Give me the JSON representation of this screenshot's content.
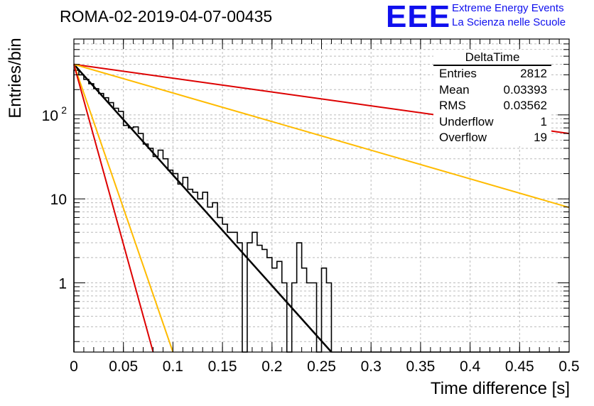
{
  "header": {
    "title": "ROMA-02-2019-04-07-00435",
    "logo_text": "EEE",
    "logo_line1": "Extreme Energy Events",
    "logo_line2": "La Scienza nelle Scuole"
  },
  "stats_box": {
    "name": "DeltaTime",
    "rows": [
      {
        "label": "Entries",
        "value": "2812"
      },
      {
        "label": "Mean",
        "value": "0.03393"
      },
      {
        "label": "RMS",
        "value": "0.03562"
      },
      {
        "label": "Underflow",
        "value": "1"
      },
      {
        "label": "Overflow",
        "value": "19"
      }
    ]
  },
  "chart_data": {
    "type": "bar",
    "xlabel": "Time difference [s]",
    "ylabel": "Entries/bin",
    "xlim": [
      0,
      0.5
    ],
    "ylim": [
      0.15,
      800
    ],
    "log_y": true,
    "grid": true,
    "x_ticks": [
      "0",
      "0.05",
      "0.1",
      "0.15",
      "0.2",
      "0.25",
      "0.3",
      "0.35",
      "0.4",
      "0.45",
      "0.5"
    ],
    "y_ticks": [
      {
        "value": 1,
        "label": "1"
      },
      {
        "value": 10,
        "label": "10"
      },
      {
        "value": 100,
        "label": "10",
        "exp": "2"
      }
    ],
    "histogram": {
      "bin_width": 0.005,
      "counts": [
        340,
        300,
        265,
        235,
        205,
        180,
        160,
        140,
        120,
        110,
        75,
        70,
        72,
        60,
        45,
        40,
        32,
        38,
        30,
        22,
        20,
        15,
        18,
        13,
        12,
        10,
        12,
        8,
        9,
        6,
        5,
        4,
        4,
        3,
        0,
        3,
        4,
        2.8,
        2.5,
        2,
        1.5,
        1.8,
        1,
        0,
        1,
        3,
        1.5,
        1,
        1,
        0,
        1.5,
        1,
        0,
        0,
        0,
        0,
        0,
        0,
        0,
        0,
        0,
        0,
        0,
        0,
        0,
        0,
        0,
        0,
        0,
        0,
        0,
        0,
        0,
        0,
        0,
        0,
        0,
        0,
        0,
        0,
        0,
        0,
        0,
        0,
        0,
        0,
        0,
        0,
        0,
        0,
        0,
        0,
        0,
        0,
        0,
        0,
        0,
        0,
        0,
        0
      ],
      "color": "#000000"
    },
    "series": [
      {
        "points": [
          [
            0,
            400
          ],
          [
            0.26,
            0.15
          ]
        ],
        "color": "#000000",
        "width": 2.5
      },
      {
        "points": [
          [
            0,
            400
          ],
          [
            0.5,
            60
          ]
        ],
        "color": "#dd0000",
        "width": 2
      },
      {
        "points": [
          [
            0,
            400
          ],
          [
            0.5,
            7.9
          ]
        ],
        "color": "#ffbb00",
        "width": 2
      },
      {
        "points": [
          [
            0,
            400
          ],
          [
            0.1,
            0.15
          ]
        ],
        "color": "#ffbb00",
        "width": 2
      },
      {
        "points": [
          [
            0,
            400
          ],
          [
            0.08,
            0.15
          ]
        ],
        "color": "#dd0000",
        "width": 2
      }
    ]
  }
}
